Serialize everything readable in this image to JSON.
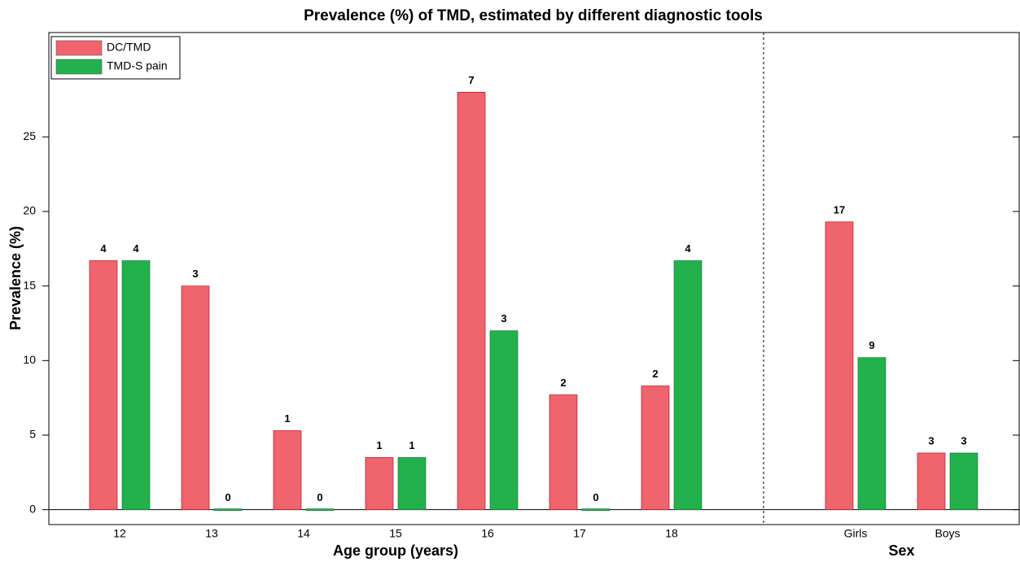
{
  "chart_data": {
    "type": "bar",
    "title": "Prevalence (%) of TMD, estimated by different diagnostic tools",
    "ylabel": "Prevalence (%)",
    "xlabel": [
      "Age group (years)",
      "Sex"
    ],
    "categories": [
      "12",
      "13",
      "14",
      "15",
      "16",
      "17",
      "18",
      "Girls",
      "Boys"
    ],
    "series": [
      {
        "name": "DC/TMD",
        "color": "#f0646e",
        "values": [
          16.7,
          15.0,
          5.3,
          3.5,
          28.0,
          7.7,
          8.3,
          19.3,
          3.8
        ],
        "counts": [
          4,
          3,
          1,
          1,
          7,
          2,
          2,
          17,
          3
        ]
      },
      {
        "name": "TMD-S pain",
        "color": "#22b14c",
        "values": [
          16.7,
          0,
          0,
          3.5,
          12.0,
          0,
          16.7,
          10.2,
          3.8
        ],
        "counts": [
          4,
          0,
          0,
          1,
          3,
          0,
          4,
          9,
          3
        ]
      }
    ],
    "ylim": [
      -1,
      32
    ],
    "yticks": [
      0,
      5,
      10,
      15,
      20,
      25
    ],
    "legend": "upper left"
  }
}
